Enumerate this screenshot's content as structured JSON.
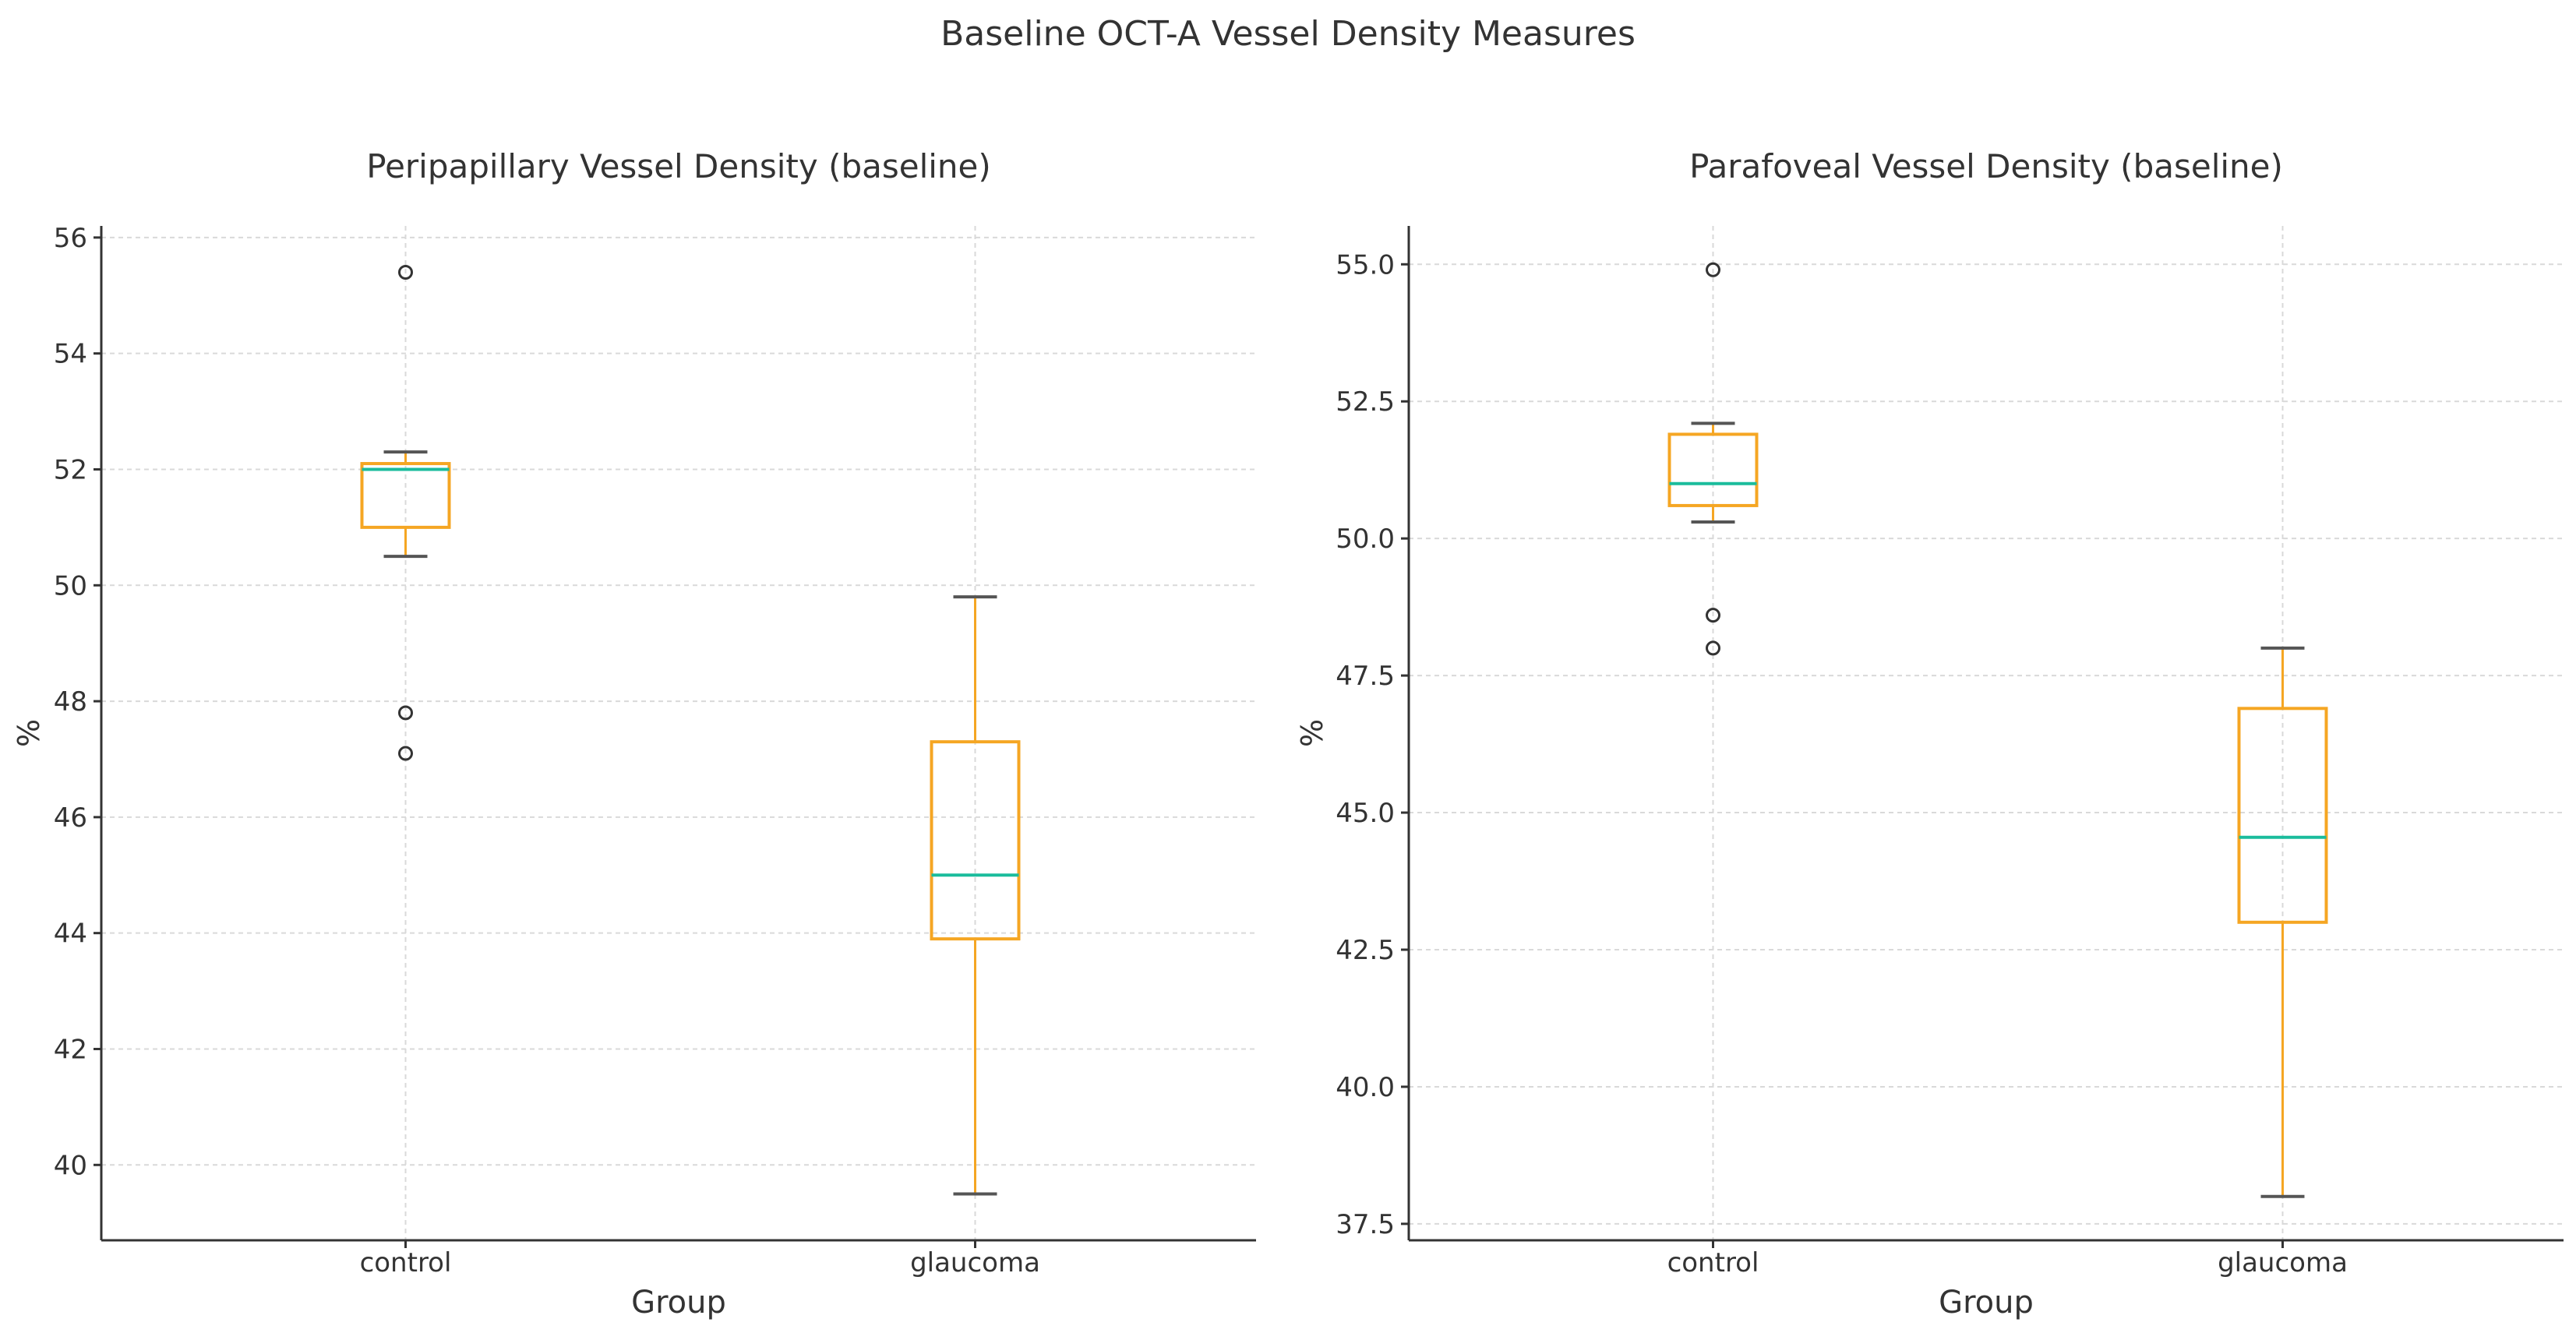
{
  "figure": {
    "suptitle": "Baseline OCT-A Vessel Density Measures"
  },
  "colors": {
    "box": "#f5a623",
    "median": "#1abc9c",
    "whisker_cap": "#555555",
    "flier": "#333333",
    "axis": "#333333",
    "grid": "#d9d9d9",
    "text": "#333333"
  },
  "chart_data": [
    {
      "type": "box",
      "title": "Peripapillary Vessel Density (baseline)",
      "xlabel": "Group",
      "ylabel": "%",
      "ylim": [
        38.7,
        56.2
      ],
      "yticks": [
        40,
        42,
        44,
        46,
        48,
        50,
        52,
        54,
        56
      ],
      "ytick_labels": [
        "40",
        "42",
        "44",
        "46",
        "48",
        "50",
        "52",
        "54",
        "56"
      ],
      "categories": [
        "control",
        "glaucoma"
      ],
      "boxes": [
        {
          "group": "control",
          "whisker_low": 50.5,
          "q1": 51.0,
          "median": 52.0,
          "q3": 52.1,
          "whisker_high": 52.3,
          "fliers": [
            55.4,
            47.8,
            47.1
          ]
        },
        {
          "group": "glaucoma",
          "whisker_low": 39.5,
          "q1": 43.9,
          "median": 45.0,
          "q3": 47.3,
          "whisker_high": 49.8,
          "fliers": []
        }
      ]
    },
    {
      "type": "box",
      "title": "Parafoveal Vessel Density (baseline)",
      "xlabel": "Group",
      "ylabel": "%",
      "ylim": [
        37.2,
        55.7
      ],
      "yticks": [
        37.5,
        40.0,
        42.5,
        45.0,
        47.5,
        50.0,
        52.5,
        55.0
      ],
      "ytick_labels": [
        "37.5",
        "40.0",
        "42.5",
        "45.0",
        "47.5",
        "50.0",
        "52.5",
        "55.0"
      ],
      "categories": [
        "control",
        "glaucoma"
      ],
      "boxes": [
        {
          "group": "control",
          "whisker_low": 50.3,
          "q1": 50.6,
          "median": 51.0,
          "q3": 51.9,
          "whisker_high": 52.1,
          "fliers": [
            54.9,
            48.6,
            48.0
          ]
        },
        {
          "group": "glaucoma",
          "whisker_low": 38.0,
          "q1": 43.0,
          "median": 44.55,
          "q3": 46.9,
          "whisker_high": 48.0,
          "fliers": []
        }
      ]
    }
  ]
}
